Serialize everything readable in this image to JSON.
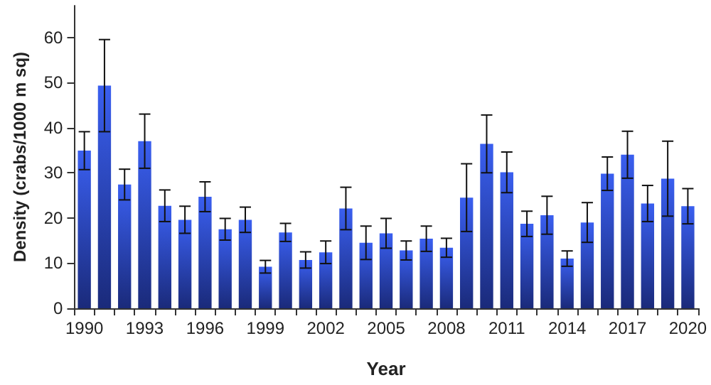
{
  "chart_data": {
    "type": "bar",
    "xlabel": "Year",
    "ylabel": "Density (crabs/1000 m sq)",
    "categories": [
      "1990",
      null,
      null,
      "1993",
      null,
      null,
      "1996",
      null,
      null,
      "1999",
      null,
      null,
      "2002",
      null,
      null,
      "2005",
      null,
      null,
      "2008",
      null,
      null,
      "2011",
      null,
      null,
      "2014",
      null,
      null,
      "2017",
      null,
      null,
      "2020"
    ],
    "values": [
      34.9,
      49.3,
      27.4,
      37,
      22.7,
      19.6,
      24.7,
      17.5,
      19.6,
      9.2,
      16.8,
      10.7,
      12.4,
      22.1,
      14.5,
      16.6,
      12.8,
      15.4,
      13.4,
      24.5,
      36.4,
      30.1,
      18.7,
      20.6,
      11,
      19,
      29.8,
      34,
      23.2,
      28.7,
      22.6
    ],
    "errors": [
      4.2,
      10.2,
      3.4,
      6,
      3.5,
      3,
      3.3,
      2.4,
      2.8,
      1.4,
      2,
      1.8,
      2.5,
      4.7,
      3.7,
      3.3,
      2.1,
      2.8,
      2.1,
      7.5,
      6.4,
      4.5,
      2.8,
      4.2,
      1.7,
      4.4,
      3.7,
      5.2,
      4,
      8.3,
      3.9
    ],
    "color": "#3a5ff0",
    "ylim": [
      0,
      67
    ],
    "yticks": [
      0,
      10,
      20,
      30,
      40,
      50,
      60
    ],
    "grid": false
  }
}
